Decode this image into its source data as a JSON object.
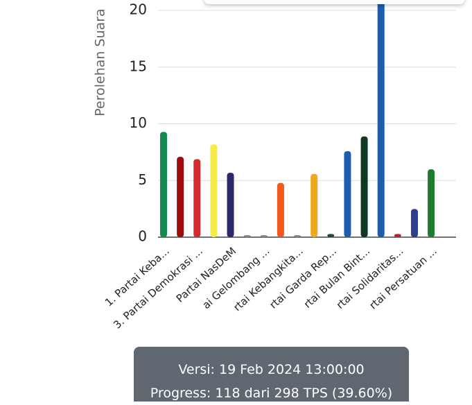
{
  "chart_data": {
    "type": "bar",
    "y_label": "Perolehan Suara",
    "categories": [
      "1. Partai Keba...",
      null,
      "3. Partai Demokrasi ...",
      null,
      "Partai NasDeM",
      null,
      "ai Gelombang ...",
      null,
      "rtai Kebangkita...",
      null,
      "rtai Garda Rep...",
      null,
      "rtai Bulan Bint...",
      null,
      "rtai Solidaritas...",
      null,
      "rtai Persatuan ..."
    ],
    "values": [
      9.1,
      6.9,
      6.7,
      8.0,
      5.5,
      0,
      0,
      4.6,
      0,
      5.4,
      0.1,
      7.4,
      8.7,
      22,
      0.1,
      2.3,
      5.8
    ],
    "colors": [
      "#138a52",
      "#9b0d0d",
      "#d42a2f",
      "#f5ec4a",
      "#2a2a6a",
      "#888888",
      "#888888",
      "#f15a1c",
      "#888888",
      "#eeaa1f",
      "#1a4a4a",
      "#1a5eb0",
      "#0f3a22",
      "#1a5eb0",
      "#c0202a",
      "#2f3f8f",
      "#1f7a32"
    ],
    "ylim": [
      0,
      20
    ],
    "yticks": [
      0,
      5,
      10,
      15,
      20
    ],
    "grid": true
  },
  "tooltip": {
    "lines": [
      "Versi: 19 Feb 2024 13:00:00",
      "Progress: 118 dari 298 TPS (39.60%)"
    ]
  }
}
